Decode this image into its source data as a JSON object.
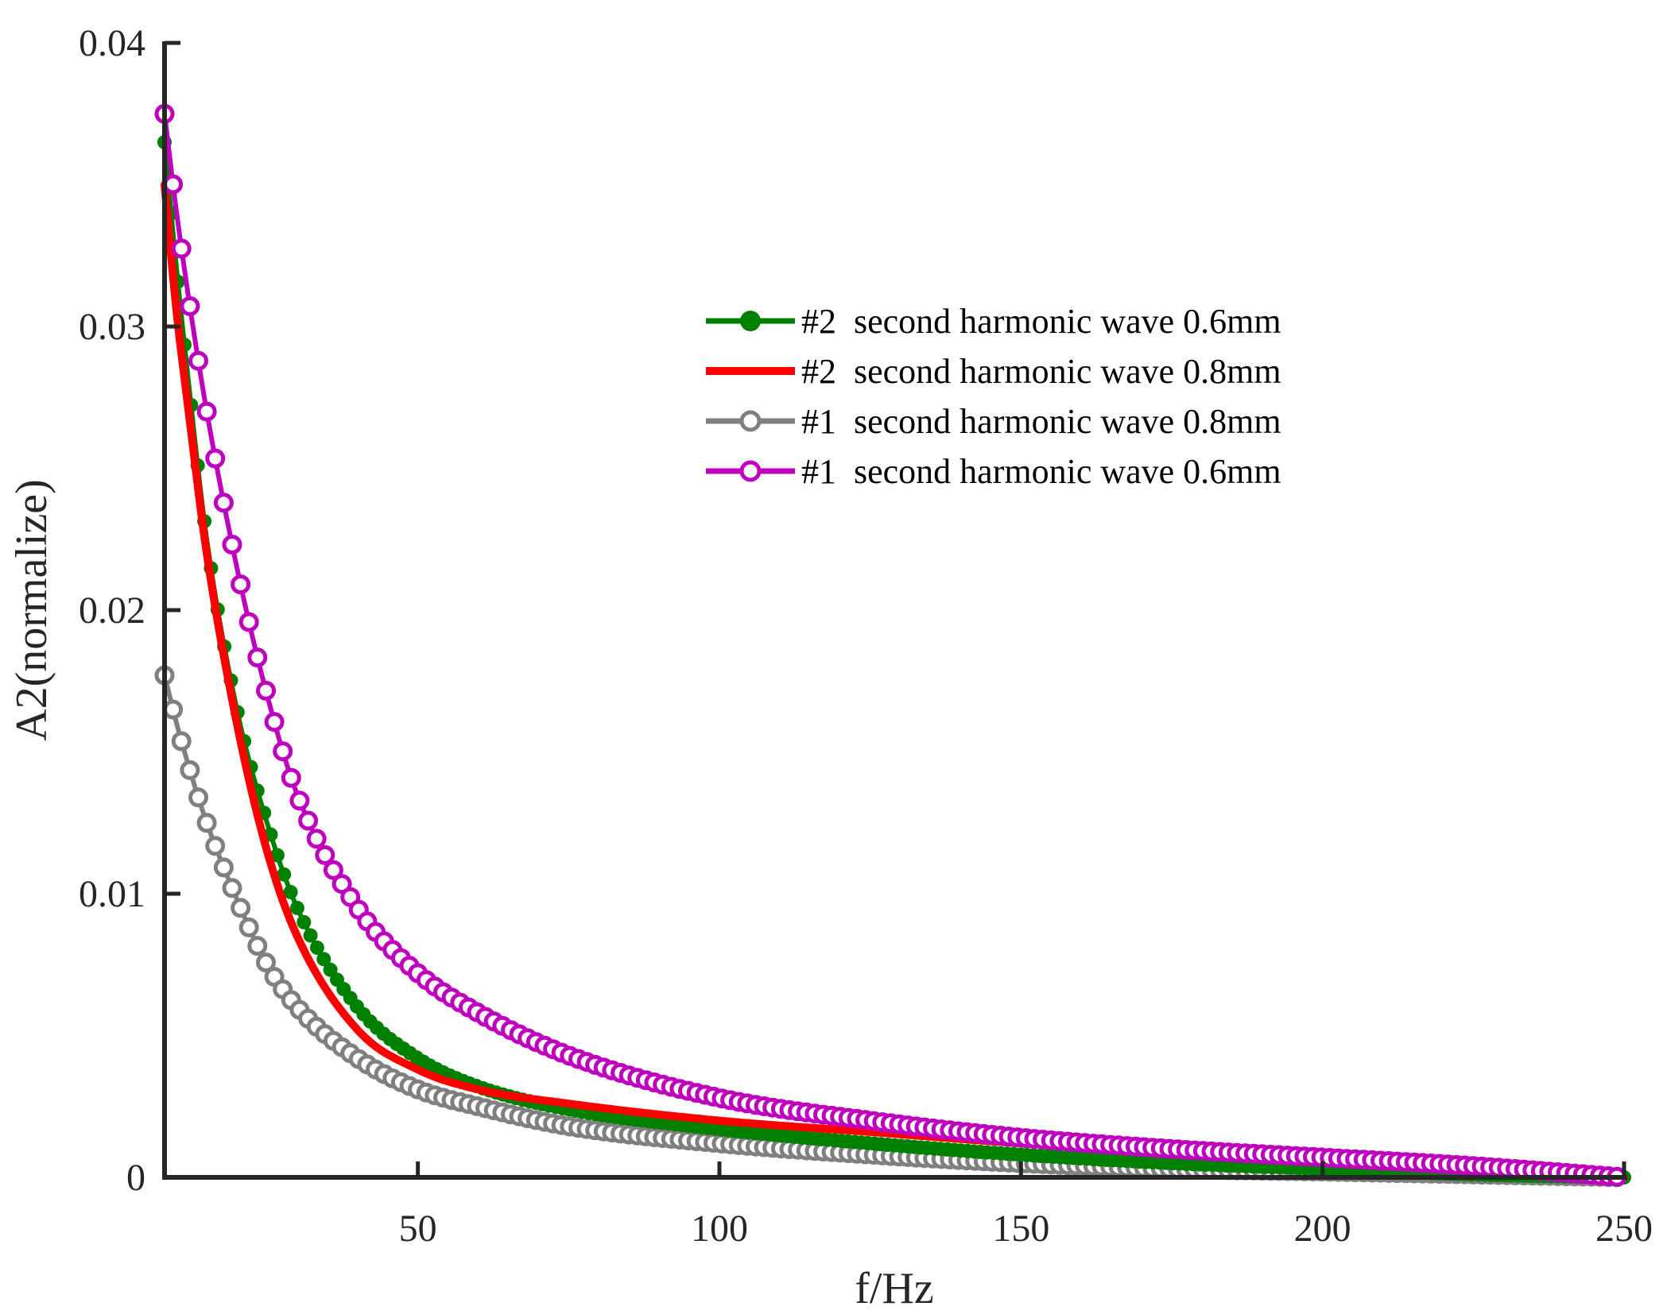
{
  "chart_data": {
    "type": "line",
    "title": "",
    "xlabel": "f/Hz",
    "ylabel": "A2(normalize)",
    "xlim": [
      8,
      250
    ],
    "ylim": [
      0,
      0.04
    ],
    "xticks": [
      50,
      100,
      150,
      200,
      250
    ],
    "yticks": [
      0,
      0.01,
      0.02,
      0.03,
      0.04
    ],
    "xtick_labels": [
      "50",
      "100",
      "150",
      "200",
      "250"
    ],
    "ytick_labels": [
      "0",
      "0.01",
      "0.02",
      "0.03",
      "0.04"
    ],
    "grid": false,
    "legend_position": "top-right",
    "x": [
      8,
      10,
      12,
      15,
      20,
      25,
      30,
      40,
      50,
      60,
      75,
      100,
      125,
      150,
      175,
      200,
      225,
      250
    ],
    "series": [
      {
        "name": "#2  second harmonic wave 0.6mm",
        "color": "#008000",
        "marker": "filled-circle",
        "values": [
          0.0365,
          0.032,
          0.028,
          0.0225,
          0.0165,
          0.0125,
          0.0095,
          0.006,
          0.0042,
          0.0032,
          0.0024,
          0.0017,
          0.0012,
          0.0008,
          0.0005,
          0.0003,
          0.0001,
          0.0
        ]
      },
      {
        "name": "#2  second harmonic wave 0.8mm",
        "color": "#ff0000",
        "marker": "none",
        "values": [
          0.035,
          0.0305,
          0.027,
          0.022,
          0.016,
          0.0115,
          0.0085,
          0.0052,
          0.0038,
          0.0031,
          0.0026,
          0.002,
          0.0016,
          0.0012,
          0.0009,
          0.0006,
          0.0003,
          0.0
        ]
      },
      {
        "name": "#1  second harmonic wave 0.8mm",
        "color": "#808080",
        "marker": "open-circle",
        "values": [
          0.0177,
          0.016,
          0.0145,
          0.0125,
          0.0098,
          0.0075,
          0.006,
          0.0042,
          0.0031,
          0.0025,
          0.0018,
          0.0012,
          0.0008,
          0.0005,
          0.0003,
          0.0002,
          0.0001,
          0.0
        ]
      },
      {
        "name": "#1  second harmonic wave 0.6mm",
        "color": "#bf00bf",
        "marker": "open-circle",
        "values": [
          0.0375,
          0.034,
          0.031,
          0.027,
          0.0215,
          0.017,
          0.0135,
          0.0095,
          0.0072,
          0.0058,
          0.0043,
          0.0028,
          0.002,
          0.0014,
          0.001,
          0.0007,
          0.0004,
          0.0
        ]
      }
    ]
  }
}
